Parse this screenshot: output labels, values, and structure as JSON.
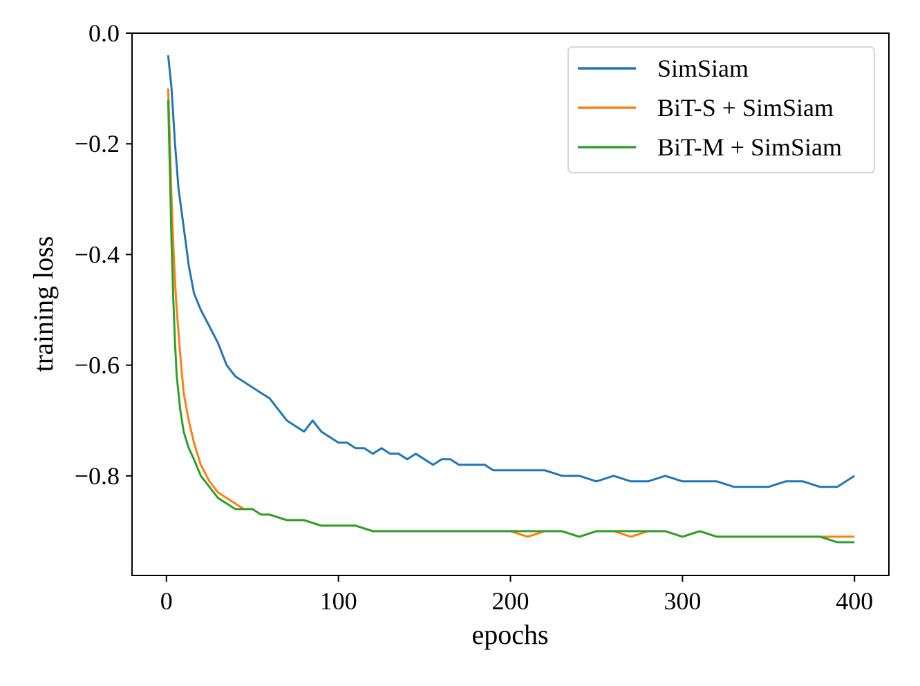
{
  "chart_data": {
    "type": "line",
    "title": "",
    "xlabel": "epochs",
    "ylabel": "training loss",
    "xlim": [
      -20,
      420
    ],
    "ylim": [
      -0.98,
      0.0
    ],
    "x_ticks": [
      0,
      100,
      200,
      300,
      400
    ],
    "x_tick_labels": [
      "0",
      "100",
      "200",
      "300",
      "400"
    ],
    "y_ticks": [
      0.0,
      -0.2,
      -0.4,
      -0.6,
      -0.8
    ],
    "y_tick_labels": [
      "0.0",
      "−0.2",
      "−0.4",
      "−0.6",
      "−0.8"
    ],
    "grid": false,
    "legend_position": "top-right",
    "series": [
      {
        "name": "SimSiam",
        "color": "#1f77b4",
        "x": [
          1,
          3,
          5,
          7,
          10,
          13,
          16,
          20,
          25,
          30,
          35,
          40,
          45,
          50,
          55,
          60,
          65,
          70,
          75,
          80,
          85,
          90,
          95,
          100,
          105,
          110,
          115,
          120,
          125,
          130,
          135,
          140,
          145,
          150,
          155,
          160,
          165,
          170,
          175,
          180,
          185,
          190,
          195,
          200,
          210,
          220,
          230,
          240,
          250,
          260,
          270,
          280,
          290,
          300,
          310,
          320,
          330,
          340,
          350,
          360,
          370,
          380,
          390,
          400
        ],
        "values": [
          -0.04,
          -0.1,
          -0.2,
          -0.28,
          -0.35,
          -0.42,
          -0.47,
          -0.5,
          -0.53,
          -0.56,
          -0.6,
          -0.62,
          -0.63,
          -0.64,
          -0.65,
          -0.66,
          -0.68,
          -0.7,
          -0.71,
          -0.72,
          -0.7,
          -0.72,
          -0.73,
          -0.74,
          -0.74,
          -0.75,
          -0.75,
          -0.76,
          -0.75,
          -0.76,
          -0.76,
          -0.77,
          -0.76,
          -0.77,
          -0.78,
          -0.77,
          -0.77,
          -0.78,
          -0.78,
          -0.78,
          -0.78,
          -0.79,
          -0.79,
          -0.79,
          -0.79,
          -0.79,
          -0.8,
          -0.8,
          -0.81,
          -0.8,
          -0.81,
          -0.81,
          -0.8,
          -0.81,
          -0.81,
          -0.81,
          -0.82,
          -0.82,
          -0.82,
          -0.81,
          -0.81,
          -0.82,
          -0.82,
          -0.8
        ]
      },
      {
        "name": "BiT-S + SimSiam",
        "color": "#ff7f0e",
        "x": [
          1,
          2,
          3,
          4,
          5,
          6,
          8,
          10,
          13,
          16,
          20,
          25,
          30,
          35,
          40,
          45,
          50,
          55,
          60,
          70,
          80,
          90,
          100,
          110,
          120,
          130,
          140,
          150,
          160,
          170,
          180,
          190,
          200,
          210,
          220,
          230,
          240,
          250,
          260,
          270,
          280,
          290,
          300,
          310,
          320,
          330,
          340,
          350,
          360,
          370,
          380,
          390,
          400
        ],
        "values": [
          -0.1,
          -0.2,
          -0.3,
          -0.38,
          -0.45,
          -0.5,
          -0.58,
          -0.65,
          -0.7,
          -0.74,
          -0.78,
          -0.81,
          -0.83,
          -0.84,
          -0.85,
          -0.86,
          -0.86,
          -0.87,
          -0.87,
          -0.88,
          -0.88,
          -0.89,
          -0.89,
          -0.89,
          -0.9,
          -0.9,
          -0.9,
          -0.9,
          -0.9,
          -0.9,
          -0.9,
          -0.9,
          -0.9,
          -0.91,
          -0.9,
          -0.9,
          -0.91,
          -0.9,
          -0.9,
          -0.91,
          -0.9,
          -0.9,
          -0.91,
          -0.9,
          -0.91,
          -0.91,
          -0.91,
          -0.91,
          -0.91,
          -0.91,
          -0.91,
          -0.91,
          -0.91
        ]
      },
      {
        "name": "BiT-M + SimSiam",
        "color": "#2ca02c",
        "x": [
          1,
          2,
          3,
          4,
          5,
          6,
          8,
          10,
          13,
          16,
          20,
          25,
          30,
          35,
          40,
          45,
          50,
          55,
          60,
          70,
          80,
          90,
          100,
          110,
          120,
          130,
          140,
          150,
          160,
          170,
          180,
          190,
          200,
          210,
          220,
          230,
          240,
          250,
          260,
          270,
          280,
          290,
          300,
          310,
          320,
          330,
          340,
          350,
          360,
          370,
          380,
          390,
          400
        ],
        "values": [
          -0.12,
          -0.25,
          -0.38,
          -0.48,
          -0.56,
          -0.62,
          -0.68,
          -0.72,
          -0.75,
          -0.77,
          -0.8,
          -0.82,
          -0.84,
          -0.85,
          -0.86,
          -0.86,
          -0.86,
          -0.87,
          -0.87,
          -0.88,
          -0.88,
          -0.89,
          -0.89,
          -0.89,
          -0.9,
          -0.9,
          -0.9,
          -0.9,
          -0.9,
          -0.9,
          -0.9,
          -0.9,
          -0.9,
          -0.9,
          -0.9,
          -0.9,
          -0.91,
          -0.9,
          -0.9,
          -0.9,
          -0.9,
          -0.9,
          -0.91,
          -0.9,
          -0.91,
          -0.91,
          -0.91,
          -0.91,
          -0.91,
          -0.91,
          -0.91,
          -0.92,
          -0.92
        ]
      }
    ]
  }
}
